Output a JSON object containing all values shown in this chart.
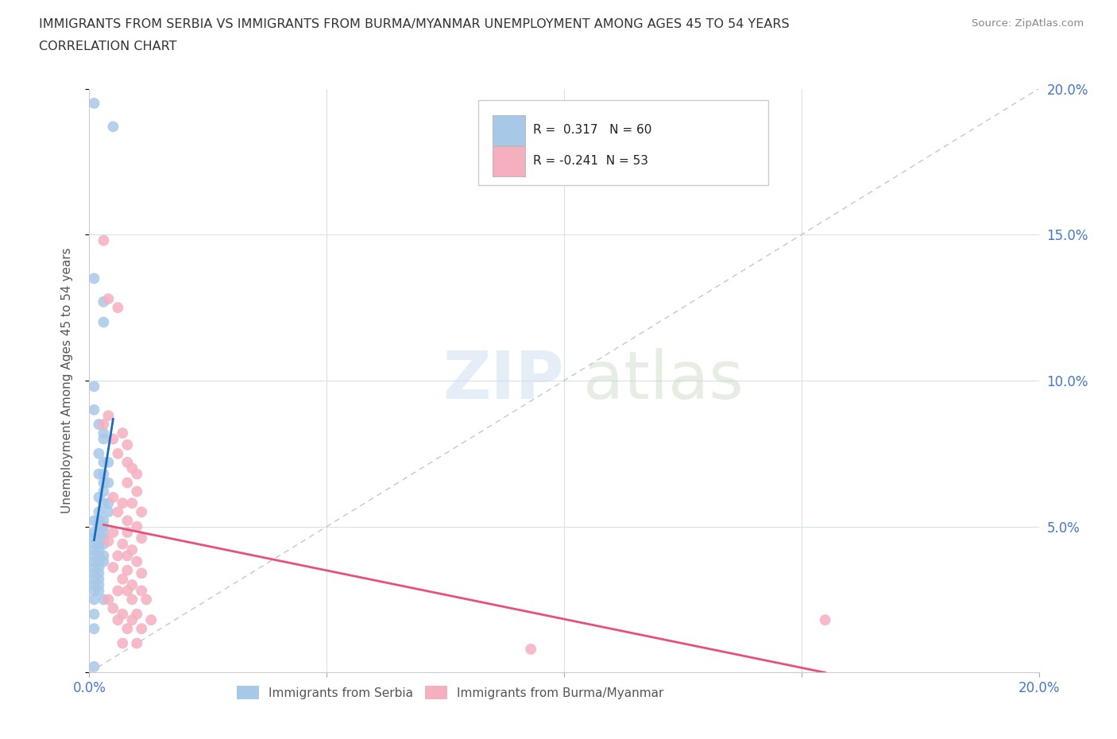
{
  "title_line1": "IMMIGRANTS FROM SERBIA VS IMMIGRANTS FROM BURMA/MYANMAR UNEMPLOYMENT AMONG AGES 45 TO 54 YEARS",
  "title_line2": "CORRELATION CHART",
  "source_text": "Source: ZipAtlas.com",
  "ylabel": "Unemployment Among Ages 45 to 54 years",
  "xlabel_serbia": "Immigrants from Serbia",
  "xlabel_burma": "Immigrants from Burma/Myanmar",
  "xlim": [
    0.0,
    0.2
  ],
  "ylim": [
    0.0,
    0.2
  ],
  "serbia_color": "#a8c8e8",
  "burma_color": "#f5b0c0",
  "serbia_R": 0.317,
  "serbia_N": 60,
  "burma_R": -0.241,
  "burma_N": 53,
  "serbia_trend_color": "#1a6bbf",
  "burma_trend_color": "#e8507a",
  "diagonal_color": "#c0c8d8",
  "grid_color": "#d8e0ec",
  "serbia_scatter": [
    [
      0.001,
      0.195
    ],
    [
      0.005,
      0.187
    ],
    [
      0.001,
      0.135
    ],
    [
      0.003,
      0.127
    ],
    [
      0.003,
      0.12
    ],
    [
      0.001,
      0.098
    ],
    [
      0.001,
      0.09
    ],
    [
      0.002,
      0.085
    ],
    [
      0.003,
      0.082
    ],
    [
      0.003,
      0.08
    ],
    [
      0.002,
      0.075
    ],
    [
      0.003,
      0.072
    ],
    [
      0.004,
      0.072
    ],
    [
      0.002,
      0.068
    ],
    [
      0.003,
      0.068
    ],
    [
      0.003,
      0.065
    ],
    [
      0.004,
      0.065
    ],
    [
      0.003,
      0.062
    ],
    [
      0.002,
      0.06
    ],
    [
      0.003,
      0.058
    ],
    [
      0.004,
      0.058
    ],
    [
      0.002,
      0.055
    ],
    [
      0.004,
      0.055
    ],
    [
      0.001,
      0.052
    ],
    [
      0.002,
      0.052
    ],
    [
      0.003,
      0.052
    ],
    [
      0.002,
      0.05
    ],
    [
      0.003,
      0.05
    ],
    [
      0.001,
      0.048
    ],
    [
      0.002,
      0.048
    ],
    [
      0.003,
      0.048
    ],
    [
      0.001,
      0.046
    ],
    [
      0.002,
      0.046
    ],
    [
      0.003,
      0.046
    ],
    [
      0.001,
      0.044
    ],
    [
      0.002,
      0.044
    ],
    [
      0.003,
      0.044
    ],
    [
      0.001,
      0.042
    ],
    [
      0.002,
      0.042
    ],
    [
      0.001,
      0.04
    ],
    [
      0.002,
      0.04
    ],
    [
      0.003,
      0.04
    ],
    [
      0.001,
      0.038
    ],
    [
      0.002,
      0.038
    ],
    [
      0.003,
      0.038
    ],
    [
      0.001,
      0.036
    ],
    [
      0.002,
      0.036
    ],
    [
      0.001,
      0.034
    ],
    [
      0.002,
      0.034
    ],
    [
      0.001,
      0.032
    ],
    [
      0.002,
      0.032
    ],
    [
      0.001,
      0.03
    ],
    [
      0.002,
      0.03
    ],
    [
      0.001,
      0.028
    ],
    [
      0.002,
      0.028
    ],
    [
      0.001,
      0.025
    ],
    [
      0.003,
      0.025
    ],
    [
      0.001,
      0.02
    ],
    [
      0.001,
      0.015
    ],
    [
      0.001,
      0.002
    ]
  ],
  "burma_scatter": [
    [
      0.003,
      0.148
    ],
    [
      0.004,
      0.128
    ],
    [
      0.006,
      0.125
    ],
    [
      0.004,
      0.088
    ],
    [
      0.003,
      0.085
    ],
    [
      0.007,
      0.082
    ],
    [
      0.005,
      0.08
    ],
    [
      0.008,
      0.078
    ],
    [
      0.006,
      0.075
    ],
    [
      0.008,
      0.072
    ],
    [
      0.009,
      0.07
    ],
    [
      0.01,
      0.068
    ],
    [
      0.008,
      0.065
    ],
    [
      0.01,
      0.062
    ],
    [
      0.005,
      0.06
    ],
    [
      0.007,
      0.058
    ],
    [
      0.009,
      0.058
    ],
    [
      0.006,
      0.055
    ],
    [
      0.011,
      0.055
    ],
    [
      0.008,
      0.052
    ],
    [
      0.01,
      0.05
    ],
    [
      0.005,
      0.048
    ],
    [
      0.008,
      0.048
    ],
    [
      0.011,
      0.046
    ],
    [
      0.004,
      0.045
    ],
    [
      0.007,
      0.044
    ],
    [
      0.009,
      0.042
    ],
    [
      0.006,
      0.04
    ],
    [
      0.008,
      0.04
    ],
    [
      0.01,
      0.038
    ],
    [
      0.005,
      0.036
    ],
    [
      0.008,
      0.035
    ],
    [
      0.011,
      0.034
    ],
    [
      0.007,
      0.032
    ],
    [
      0.009,
      0.03
    ],
    [
      0.006,
      0.028
    ],
    [
      0.008,
      0.028
    ],
    [
      0.011,
      0.028
    ],
    [
      0.004,
      0.025
    ],
    [
      0.009,
      0.025
    ],
    [
      0.012,
      0.025
    ],
    [
      0.005,
      0.022
    ],
    [
      0.007,
      0.02
    ],
    [
      0.01,
      0.02
    ],
    [
      0.006,
      0.018
    ],
    [
      0.009,
      0.018
    ],
    [
      0.013,
      0.018
    ],
    [
      0.008,
      0.015
    ],
    [
      0.011,
      0.015
    ],
    [
      0.007,
      0.01
    ],
    [
      0.01,
      0.01
    ],
    [
      0.155,
      0.018
    ],
    [
      0.093,
      0.008
    ]
  ]
}
